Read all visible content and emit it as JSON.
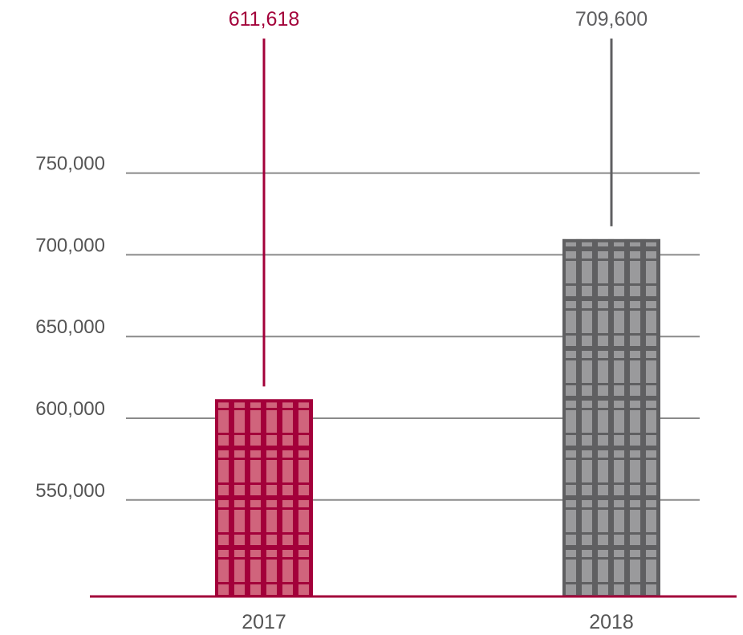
{
  "chart_data": {
    "type": "bar",
    "title": "",
    "xlabel": "",
    "ylabel": "",
    "categories": [
      "2017",
      "2018"
    ],
    "values": [
      611618,
      709600
    ],
    "value_labels": [
      "611,618",
      "709,600"
    ],
    "yticks": [
      550000,
      600000,
      650000,
      700000,
      750000
    ],
    "ytick_labels": [
      "550,000",
      "600,000",
      "650,000",
      "700,000",
      "750,000"
    ],
    "ylim": [
      490000,
      800000
    ],
    "grid": true,
    "legend": "none",
    "bar_colors": [
      "#a3003a",
      "#5f5f61"
    ],
    "bar_pattern_colors": [
      "#d0647c",
      "#9a9a9c"
    ],
    "label_colors": [
      "#a3003a",
      "#5f5f61"
    ],
    "baseline_color": "#a3003a",
    "grid_color": "#8a8a8a"
  }
}
